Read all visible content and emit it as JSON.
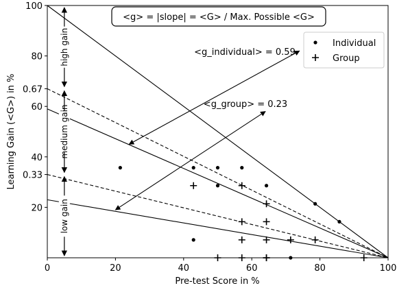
{
  "chart_data": {
    "type": "scatter",
    "xlabel": "Pre-test Score in %",
    "ylabel": "Learning Gain (<G>) in %",
    "xlim": [
      0,
      100
    ],
    "ylim": [
      0,
      100
    ],
    "x_ticks": [
      0,
      20,
      40,
      60,
      80,
      100
    ],
    "y_ticks": [
      20,
      40,
      60,
      80,
      100
    ],
    "y_extra_ticks": [
      "0.33",
      "0.67"
    ],
    "grid": false,
    "legend_position": "top-right",
    "title_box": "<g> = |slope| = <G> / Max. Possible <G>",
    "reference_lines": [
      {
        "label": "max",
        "g": 1.0,
        "style": "solid"
      },
      {
        "label": "0.67",
        "g": 0.67,
        "style": "dashed"
      },
      {
        "label": "0.33",
        "g": 0.33,
        "style": "dashed"
      },
      {
        "label": "<g_individual> = 0.59",
        "g": 0.59,
        "style": "solid"
      },
      {
        "label": "<g_group> = 0.23",
        "g": 0.23,
        "style": "solid"
      }
    ],
    "bands": [
      {
        "label": "high gain",
        "from": 67,
        "to": 100
      },
      {
        "label": "medium gain",
        "from": 33,
        "to": 67
      },
      {
        "label": "low gain",
        "from": 0,
        "to": 33
      }
    ],
    "annotations": [
      {
        "text": "<g_individual> = 0.59",
        "arrow_from": [
          24,
          45
        ],
        "arrow_to": [
          74,
          82
        ]
      },
      {
        "text": "<g_group> = 0.23",
        "arrow_from": [
          20,
          19
        ],
        "arrow_to": [
          64,
          58
        ]
      }
    ],
    "series": [
      {
        "name": "Individual",
        "marker": "dot",
        "x": [
          21.4,
          42.9,
          50.0,
          57.1,
          64.3,
          42.9,
          50.0,
          78.6,
          85.7,
          71.4
        ],
        "y": [
          35.7,
          35.7,
          35.7,
          35.7,
          28.6,
          7.1,
          28.6,
          21.4,
          14.3,
          0
        ]
      },
      {
        "name": "Group",
        "marker": "plus",
        "x": [
          42.9,
          57.1,
          57.1,
          64.3,
          64.3,
          64.3,
          57.1,
          64.3,
          71.4,
          78.6,
          50.0,
          57.1,
          64.3,
          92.9
        ],
        "y": [
          28.6,
          28.6,
          14.3,
          21.4,
          14.3,
          7.1,
          7.1,
          0,
          7.1,
          7.1,
          0,
          0,
          0,
          0
        ]
      }
    ]
  }
}
